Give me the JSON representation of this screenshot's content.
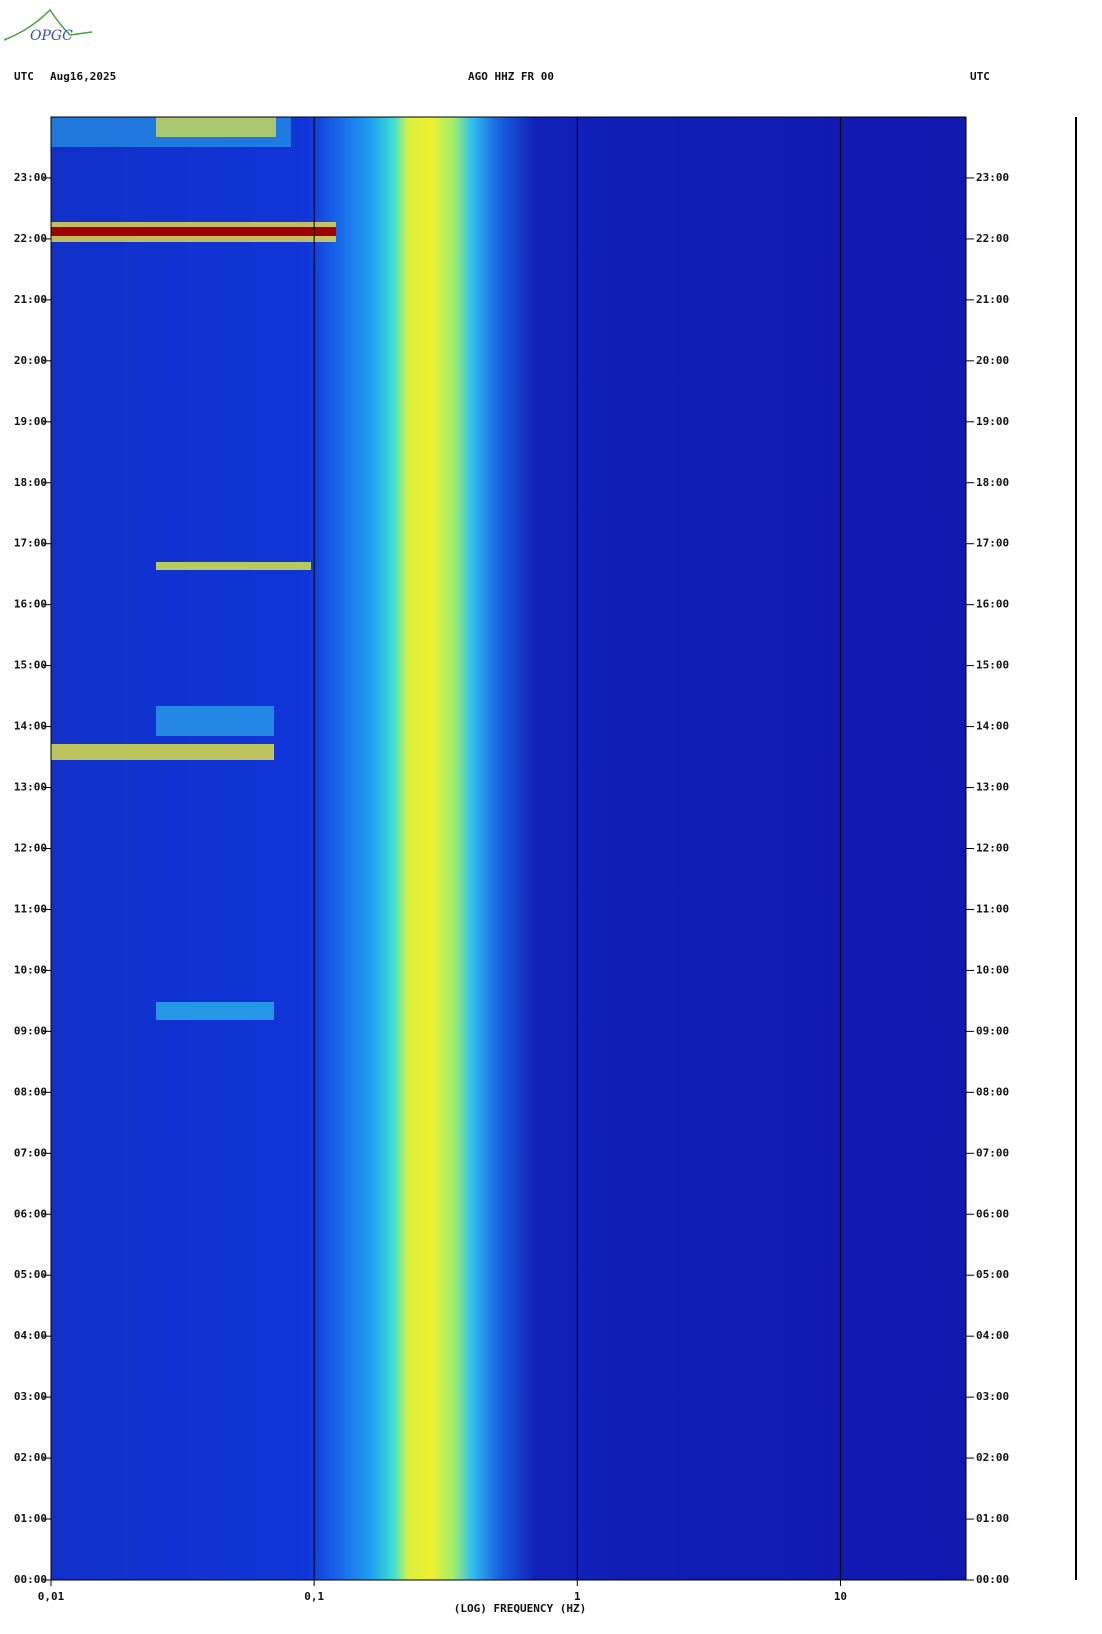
{
  "logo": "OPGC",
  "header": {
    "left_label": "UTC",
    "date": "Aug16,2025",
    "station": "AGO HHZ FR 00",
    "right_label": "UTC"
  },
  "chart_data": {
    "type": "spectrogram",
    "xlabel": "(LOG) FREQUENCY (HZ)",
    "xscale": "log",
    "xlim": [
      0.01,
      30
    ],
    "xticks": [
      {
        "value": 0.01,
        "label": "0,01"
      },
      {
        "value": 0.1,
        "label": "0,1"
      },
      1,
      10
    ],
    "ylim": [
      0,
      24
    ],
    "yticks": [
      {
        "value": 0,
        "label": "00:00"
      },
      {
        "value": 1,
        "label": "01:00"
      },
      {
        "value": 2,
        "label": "02:00"
      },
      {
        "value": 3,
        "label": "03:00"
      },
      {
        "value": 4,
        "label": "04:00"
      },
      {
        "value": 5,
        "label": "05:00"
      },
      {
        "value": 6,
        "label": "06:00"
      },
      {
        "value": 7,
        "label": "07:00"
      },
      {
        "value": 8,
        "label": "08:00"
      },
      {
        "value": 9,
        "label": "09:00"
      },
      {
        "value": 10,
        "label": "10:00"
      },
      {
        "value": 11,
        "label": "11:00"
      },
      {
        "value": 12,
        "label": "12:00"
      },
      {
        "value": 13,
        "label": "13:00"
      },
      {
        "value": 14,
        "label": "14:00"
      },
      {
        "value": 15,
        "label": "15:00"
      },
      {
        "value": 16,
        "label": "16:00"
      },
      {
        "value": 17,
        "label": "17:00"
      },
      {
        "value": 18,
        "label": "18:00"
      },
      {
        "value": 19,
        "label": "19:00"
      },
      {
        "value": 20,
        "label": "20:00"
      },
      {
        "value": 21,
        "label": "21:00"
      },
      {
        "value": 22,
        "label": "22:00"
      },
      {
        "value": 23,
        "label": "23:00"
      }
    ]
  }
}
